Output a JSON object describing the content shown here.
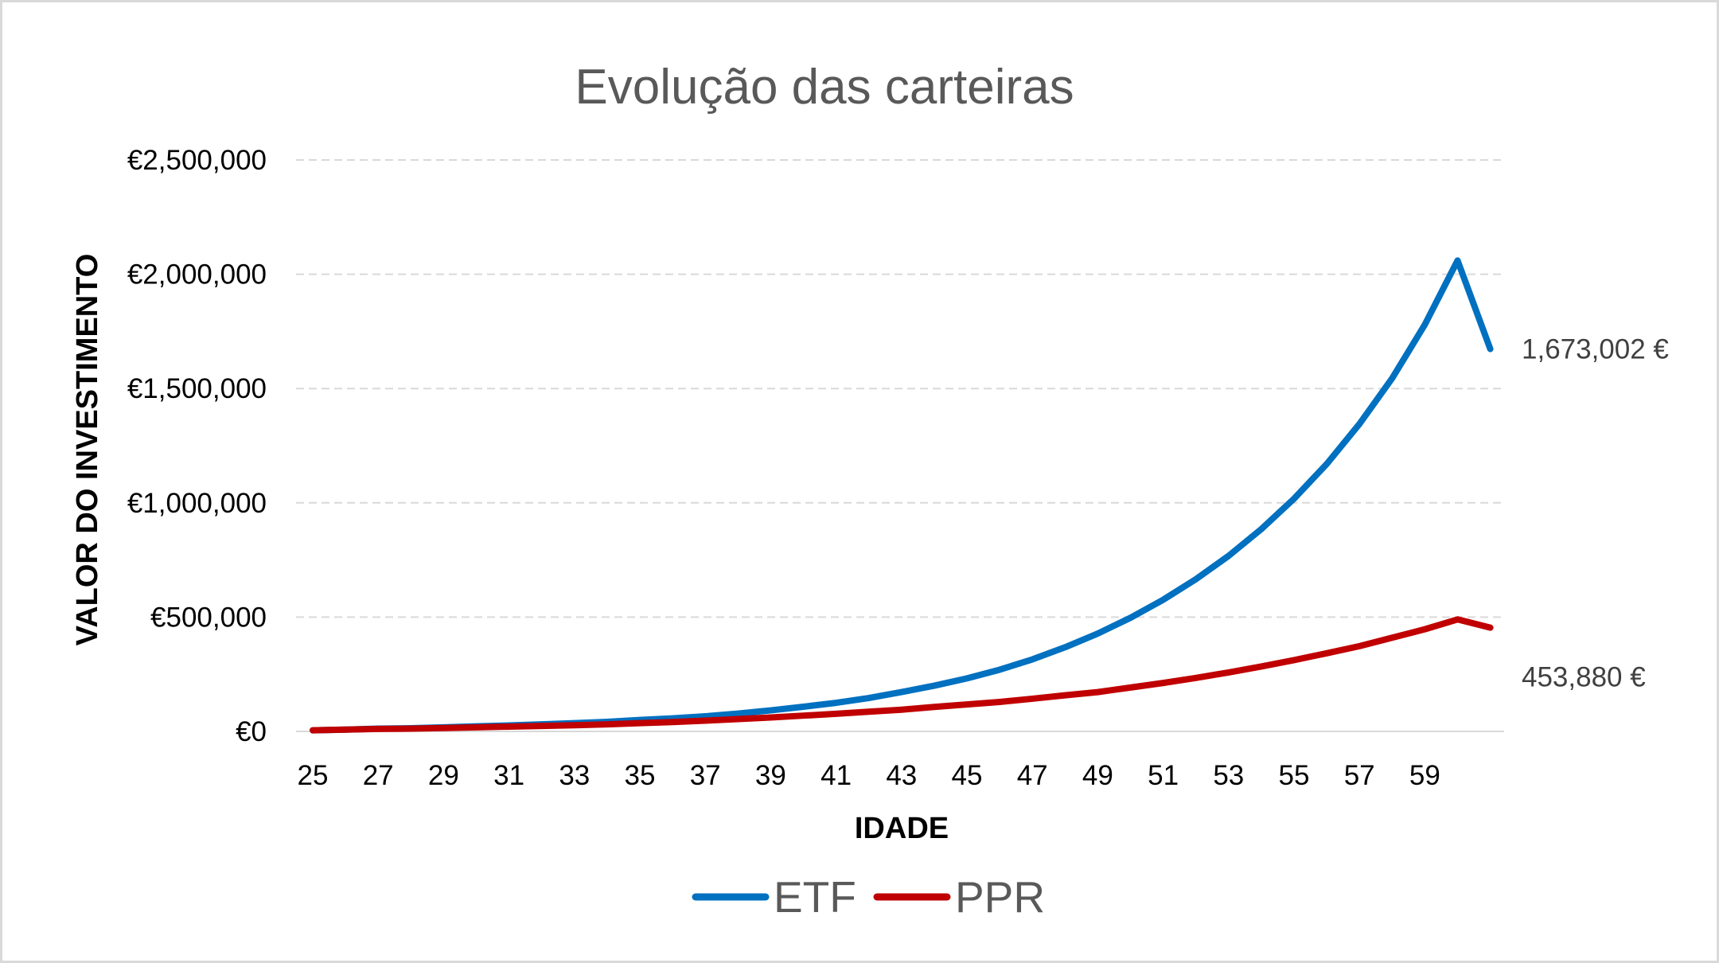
{
  "chart_data": {
    "type": "line",
    "title": "Evolução das carteiras",
    "xlabel": "IDADE",
    "ylabel": "VALOR DO INVESTIMENTO",
    "x": [
      25,
      26,
      27,
      28,
      29,
      30,
      31,
      32,
      33,
      34,
      35,
      36,
      37,
      38,
      39,
      40,
      41,
      42,
      43,
      44,
      45,
      46,
      47,
      48,
      49,
      50,
      51,
      52,
      53,
      54,
      55,
      56,
      57,
      58,
      59,
      60,
      61
    ],
    "x_tick_labels": [
      "25",
      "27",
      "29",
      "31",
      "33",
      "35",
      "37",
      "39",
      "41",
      "43",
      "45",
      "47",
      "49",
      "51",
      "53",
      "55",
      "57",
      "59"
    ],
    "xlim": [
      25,
      61
    ],
    "ylim": [
      0,
      2500000
    ],
    "y_ticks": [
      0,
      500000,
      1000000,
      1500000,
      2000000,
      2500000
    ],
    "y_tick_labels": [
      "€0",
      "€500,000",
      "€1,000,000",
      "€1,500,000",
      "€2,000,000",
      "€2,500,000"
    ],
    "grid": "horizontal dashed",
    "legend": "bottom",
    "series": [
      {
        "name": "ETF",
        "color": "#0070c0",
        "values": [
          5000,
          8000,
          12000,
          14000,
          18000,
          22000,
          26000,
          31000,
          36000,
          42000,
          50000,
          57000,
          66000,
          78000,
          92000,
          108000,
          125000,
          146000,
          172000,
          200000,
          232000,
          270000,
          315000,
          368000,
          428000,
          497000,
          576000,
          666000,
          768000,
          885000,
          1018000,
          1170000,
          1345000,
          1545000,
          1780000,
          2060000,
          1673002
        ],
        "end_label": "1,673,002 €"
      },
      {
        "name": "PPR",
        "color": "#c00000",
        "values": [
          5000,
          8000,
          11000,
          12000,
          15000,
          18000,
          21000,
          24000,
          27000,
          31000,
          36000,
          41000,
          47000,
          54000,
          61000,
          69000,
          77000,
          86000,
          95000,
          107000,
          118000,
          129000,
          143000,
          158000,
          172000,
          192000,
          212000,
          234000,
          258000,
          284000,
          312000,
          342000,
          373000,
          410000,
          447000,
          490000,
          453880
        ],
        "end_label": "453,880 €"
      }
    ]
  }
}
